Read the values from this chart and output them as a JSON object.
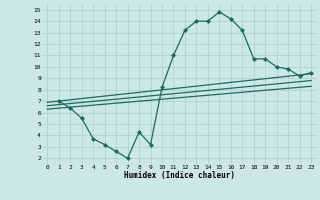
{
  "bg_color": "#cce8e4",
  "grid_color": "#aacfcb",
  "line_color": "#1a6b5e",
  "marker_color": "#1a6b5e",
  "xlabel": "Humidex (Indice chaleur)",
  "xlim": [
    -0.5,
    23.5
  ],
  "ylim": [
    1.5,
    15.5
  ],
  "curve_main_x": [
    1,
    2,
    3,
    4,
    5,
    6,
    7,
    8,
    9,
    10,
    11,
    12,
    13,
    14,
    15,
    16,
    17,
    18,
    19,
    20,
    21,
    22,
    23
  ],
  "curve_main_y": [
    7.0,
    6.4,
    5.5,
    3.7,
    3.2,
    2.6,
    2.0,
    4.3,
    3.2,
    8.2,
    11.0,
    13.2,
    14.0,
    14.0,
    14.8,
    14.2,
    13.2,
    10.7,
    10.7,
    10.0,
    9.8,
    9.2,
    9.5
  ],
  "line1_x": [
    0,
    23
  ],
  "line1_y": [
    6.9,
    9.4
  ],
  "line2_x": [
    0,
    23
  ],
  "line2_y": [
    6.6,
    8.8
  ],
  "line3_x": [
    0,
    23
  ],
  "line3_y": [
    6.3,
    8.3
  ]
}
